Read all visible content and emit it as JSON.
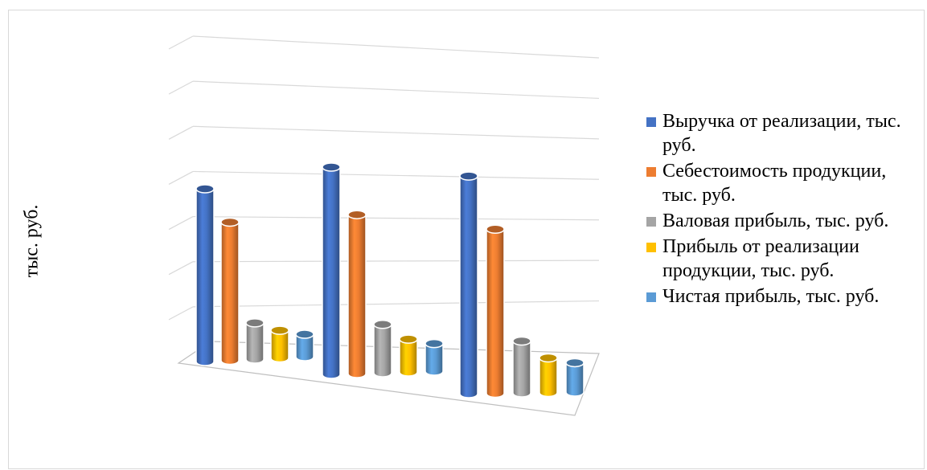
{
  "chart_data": {
    "type": "bar",
    "title": "",
    "xlabel": "",
    "ylabel": "тыс. руб.",
    "categories": [
      "",
      "",
      ""
    ],
    "series": [
      {
        "name": "Выручка от реализации, тыс. руб.",
        "color": "#4472c4",
        "values": [
          100,
          120,
          126
        ]
      },
      {
        "name": "Себестоимость продукции, тыс. руб.",
        "color": "#ed7d31",
        "values": [
          80,
          92,
          95
        ]
      },
      {
        "name": "Валовая прибыль, тыс. руб.",
        "color": "#a5a5a5",
        "values": [
          21,
          28,
          30
        ]
      },
      {
        "name": "Прибыль от реализации продукции, тыс. руб.",
        "color": "#ffc000",
        "values": [
          16,
          19,
          20
        ]
      },
      {
        "name": "Чистая прибыль, тыс. руб.",
        "color": "#5b9bd5",
        "values": [
          13,
          16,
          17
        ]
      }
    ],
    "ylim": [
      0,
      140
    ],
    "grid": true,
    "legend_position": "right"
  }
}
